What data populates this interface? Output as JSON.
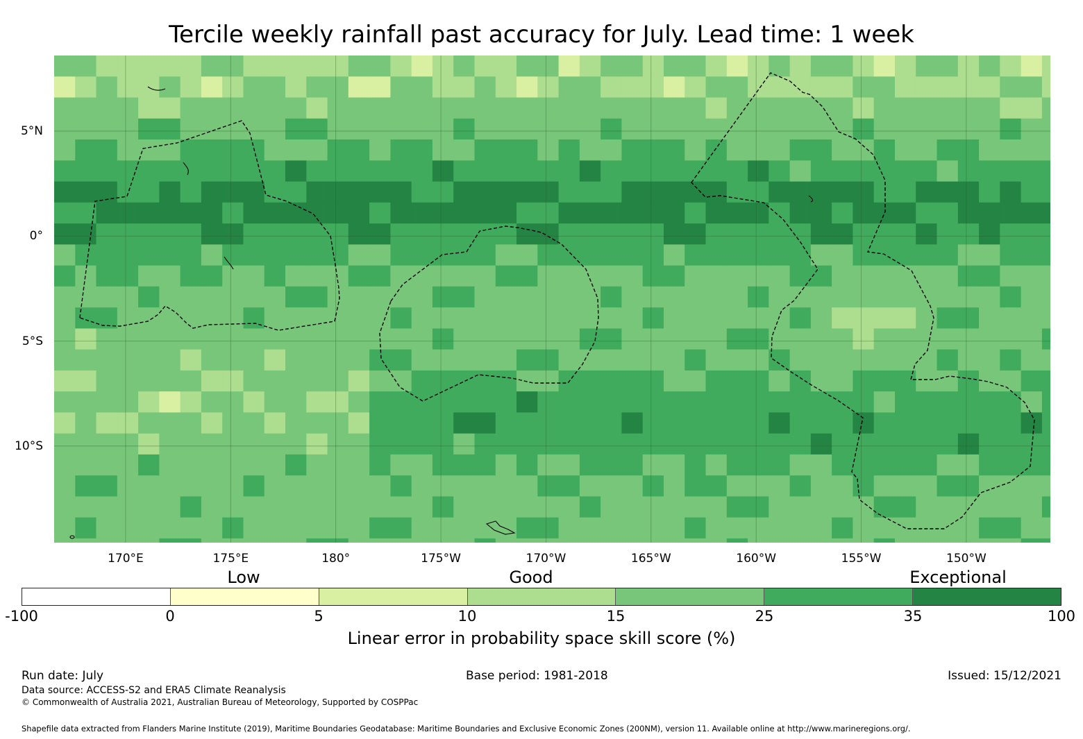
{
  "title": "Tercile weekly rainfall past accuracy for July. Lead time: 1 week",
  "map": {
    "lat_labels": [
      {
        "text": "5°N",
        "lat": 5
      },
      {
        "text": "0°",
        "lat": 0
      },
      {
        "text": "5°S",
        "lat": -5
      },
      {
        "text": "10°S",
        "lat": -10
      }
    ],
    "lon_labels": [
      {
        "text": "170°E",
        "lon": 170
      },
      {
        "text": "175°E",
        "lon": 175
      },
      {
        "text": "180°",
        "lon": 180
      },
      {
        "text": "175°W",
        "lon": 185
      },
      {
        "text": "170°W",
        "lon": 190
      },
      {
        "text": "165°W",
        "lon": 195
      },
      {
        "text": "160°W",
        "lon": 200
      },
      {
        "text": "155°W",
        "lon": 205
      },
      {
        "text": "150°W",
        "lon": 210
      }
    ],
    "extent": {
      "lon_min": 166.6,
      "lon_max": 214.0,
      "lat_min": -14.6,
      "lat_max": 8.6
    },
    "legend_categories": [
      {
        "text": "Low"
      },
      {
        "text": "Good"
      },
      {
        "text": "Exceptional"
      }
    ],
    "colorbar": {
      "ticks": [
        "-100",
        "0",
        "5",
        "10",
        "15",
        "25",
        "35",
        "100"
      ],
      "colors": [
        "#ffffff",
        "#ffffcc",
        "#d9f0a3",
        "#addd8e",
        "#78c679",
        "#41ab5d",
        "#238443"
      ],
      "label": "Linear error in probability space skill score (%)"
    }
  },
  "footer": {
    "run_date": "Run date: July",
    "base_period": "Base period: 1981-2018",
    "issued": "Issued: 15/12/2021",
    "data_source": "Data source: ACCESS-S2 and ERA5 Climate Reanalysis",
    "copyright": "© Commonwealth of Australia 2021, Australian Bureau of Meteorology, Supported by COSPPac",
    "shapefile_note": "Shapefile data extracted from Flanders Marine Institute (2019), Maritime Boundaries Geodatabase: Maritime Boundaries and Exclusive Economic Zones (200NM), version 11. Available online at http://www.marineregions.org/."
  }
}
